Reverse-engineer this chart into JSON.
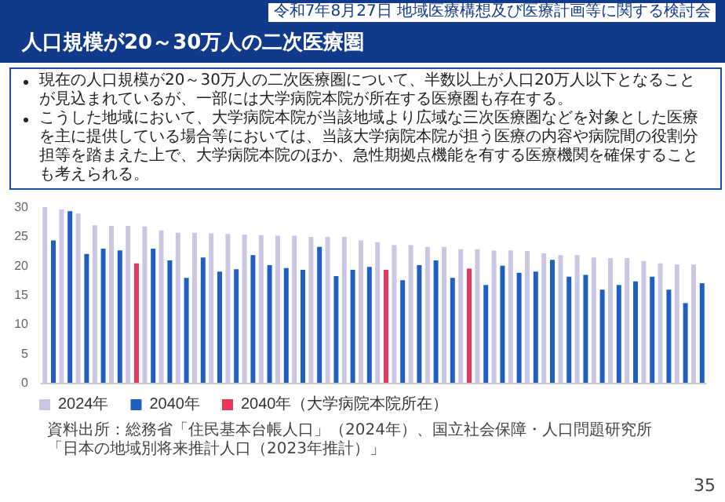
{
  "chart_data": {
    "type": "bar",
    "title": "人口規模が20～30万人の二次医療圏",
    "annotations": [
      "令和7年8月27日 地域医療構想及び医療計画等に関する検討会",
      "現在の人口規模が20～30万人の二次医療圏について、半数以上が人口20万人以下となることが見込まれているが、一部には大学病院本院が所在する医療圏も存在する。",
      "こうした地域において、大学病院本院が当該地域より広域な三次医療圏などを対象とした医療を主に提供している場合等においては、当該大学病院本院が担う医療の内容や病院間の役割分担等を踏まえた上で、大学病院本院のほか、急性期拠点機能を有する医療機関を確保することも考えられる。",
      "資料出所：総務省「住民基本台帳人口」（2024年）、国立社会保障・人口問題研究所「日本の地域別将来推計人口（2023年推計）」",
      "35"
    ],
    "categories": [
      null,
      null,
      null,
      null,
      null,
      null,
      null,
      null,
      null,
      null,
      null,
      null,
      null,
      null,
      null,
      null,
      null,
      null,
      null,
      null,
      null,
      null,
      null,
      null,
      null,
      null,
      null,
      null,
      null,
      null,
      null,
      null,
      null,
      null,
      null,
      null,
      null,
      null,
      null,
      null
    ],
    "series": [
      {
        "name": "2024年",
        "color": "#cbc7e2",
        "values": [
          30.0,
          29.6,
          28.9,
          26.9,
          26.8,
          26.8,
          26.7,
          26.0,
          25.6,
          25.6,
          25.5,
          25.4,
          25.3,
          25.2,
          25.1,
          25.1,
          24.9,
          24.9,
          24.9,
          24.3,
          24.0,
          23.5,
          23.5,
          23.2,
          23.2,
          22.8,
          22.8,
          22.6,
          22.6,
          22.5,
          22.1,
          21.8,
          21.8,
          21.4,
          21.3,
          21.3,
          20.8,
          20.4,
          20.2,
          20.2
        ]
      },
      {
        "name": "2040年",
        "color": "#1f5fbf",
        "values": [
          24.3,
          29.3,
          22.0,
          22.9,
          22.6,
          null,
          22.9,
          20.9,
          17.9,
          21.4,
          19.0,
          19.4,
          21.8,
          20.1,
          19.6,
          19.3,
          23.2,
          18.2,
          19.3,
          19.8,
          null,
          17.5,
          20.1,
          20.9,
          17.9,
          null,
          16.7,
          20.0,
          18.8,
          19.0,
          21.0,
          18.1,
          18.4,
          15.9,
          16.7,
          17.3,
          18.1,
          15.9,
          13.6,
          17.0
        ]
      },
      {
        "name": "2040年（大学病院本院所在）",
        "color": "#e8365d",
        "values": [
          null,
          null,
          null,
          null,
          null,
          20.4,
          null,
          null,
          null,
          null,
          null,
          null,
          null,
          null,
          null,
          null,
          null,
          null,
          null,
          null,
          19.3,
          null,
          null,
          null,
          null,
          19.5,
          null,
          null,
          null,
          null,
          null,
          null,
          null,
          null,
          null,
          null,
          null,
          null,
          null,
          null
        ]
      }
    ],
    "ylim": [
      0,
      30
    ],
    "yticks": [
      0,
      5,
      10,
      15,
      20,
      25,
      30
    ],
    "grid": false,
    "legend": "bottom left",
    "tick_labels": "y"
  }
}
